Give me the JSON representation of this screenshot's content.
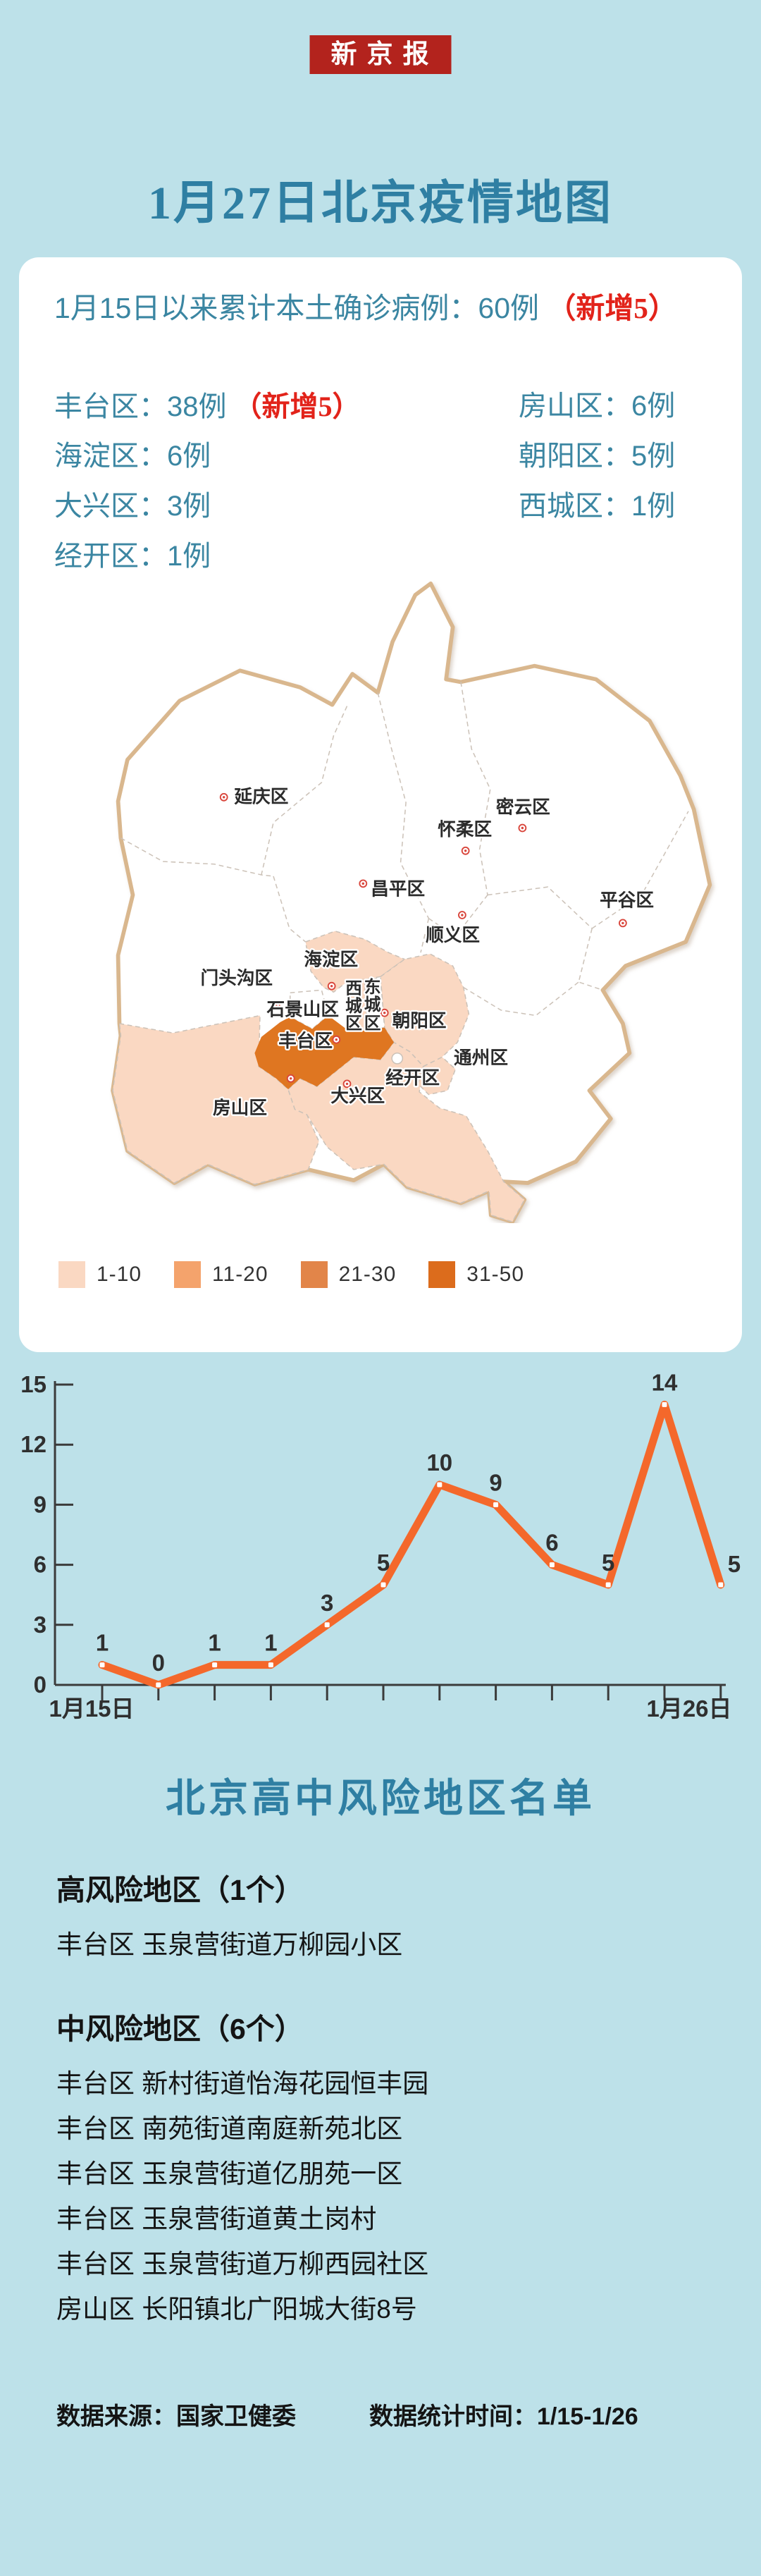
{
  "header": {
    "badge": "新京报",
    "title": "1月27日北京疫情地图"
  },
  "summary": {
    "text": "1月15日以来累计本土确诊病例：60例",
    "new_badge": "（新增5）"
  },
  "district_stats": {
    "left": [
      {
        "label": "丰台区：38例",
        "extra": "（新增5）"
      },
      {
        "label": "海淀区：6例"
      },
      {
        "label": "大兴区：3例"
      },
      {
        "label": "经开区：1例"
      }
    ],
    "right": [
      {
        "label": "房山区：6例"
      },
      {
        "label": "朝阳区：5例"
      },
      {
        "label": "西城区：1例"
      }
    ]
  },
  "map": {
    "level_colors": {
      "0": "#FFFFFF",
      "1": "#FAD8C2",
      "2": "#F4A36C",
      "3": "#E28549",
      "4": "#DF7621"
    },
    "districts": [
      {
        "id": "yanqing",
        "label": "延庆区",
        "level": 0
      },
      {
        "id": "huairou",
        "label": "怀柔区",
        "level": 0
      },
      {
        "id": "miyun",
        "label": "密云区",
        "level": 0
      },
      {
        "id": "changping",
        "label": "昌平区",
        "level": 0
      },
      {
        "id": "pinggu",
        "label": "平谷区",
        "level": 0
      },
      {
        "id": "shunyi",
        "label": "顺义区",
        "level": 0
      },
      {
        "id": "mentougou",
        "label": "门头沟区",
        "level": 0
      },
      {
        "id": "haidian",
        "label": "海淀区",
        "level": 1
      },
      {
        "id": "shijingshan",
        "label": "石景山区",
        "level": 0
      },
      {
        "id": "xicheng",
        "label": "西城区",
        "level": 1,
        "vertical": true
      },
      {
        "id": "dongcheng",
        "label": "东城区",
        "level": 0,
        "vertical": true
      },
      {
        "id": "chaoyang",
        "label": "朝阳区",
        "level": 1
      },
      {
        "id": "tongzhou",
        "label": "通州区",
        "level": 0
      },
      {
        "id": "fengtai",
        "label": "丰台区",
        "level": 4
      },
      {
        "id": "fangshan",
        "label": "房山区",
        "level": 1
      },
      {
        "id": "daxing",
        "label": "大兴区",
        "level": 1
      },
      {
        "id": "jingkai",
        "label": "经开区",
        "level": 1
      }
    ],
    "legend": [
      {
        "range": "1-10",
        "color": "#FAD8C2"
      },
      {
        "range": "11-20",
        "color": "#F4A36C"
      },
      {
        "range": "21-30",
        "color": "#E28549"
      },
      {
        "range": "31-50",
        "color": "#DC6C1C"
      }
    ]
  },
  "chart_data": {
    "type": "line",
    "title": "",
    "x_first_label": "1月15日",
    "x_last_label": "1月26日",
    "n_points": 12,
    "values": [
      1,
      0,
      1,
      1,
      3,
      5,
      10,
      9,
      6,
      5,
      14,
      5
    ],
    "yticks": [
      0,
      3,
      6,
      9,
      12,
      15
    ],
    "ylim": [
      0,
      15
    ],
    "grid": false,
    "legend_position": "none",
    "line_color": "#F4682B",
    "marker": "white-square"
  },
  "risk_list": {
    "heading": "北京高中风险地区名单",
    "high": {
      "title": "高风险地区（1个）",
      "items": [
        "丰台区 玉泉营街道万柳园小区"
      ]
    },
    "mid": {
      "title": "中风险地区（6个）",
      "items": [
        "丰台区 新村街道怡海花园恒丰园",
        "丰台区 南苑街道南庭新苑北区",
        "丰台区 玉泉营街道亿朋苑一区",
        "丰台区 玉泉营街道黄土岗村",
        "丰台区 玉泉营街道万柳西园社区",
        "房山区 长阳镇北广阳城大街8号"
      ]
    }
  },
  "footer": {
    "source": "数据来源：国家卫健委",
    "period": "数据统计时间：1/15-1/26"
  },
  "colors": {
    "background": "#BDE1E9",
    "card": "#FFFFFF",
    "title_teal": "#2F7FA3",
    "body_teal": "#3B86A2",
    "accent_red": "#E2231A",
    "badge_red": "#B3231D",
    "chart_line": "#F4682B",
    "map_border_tan": "#D9B78E",
    "inner_border": "#CCC2B8",
    "marker_red": "#D9463C"
  }
}
